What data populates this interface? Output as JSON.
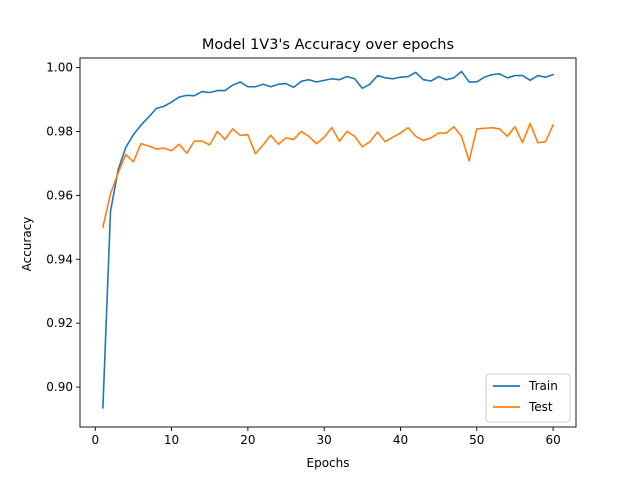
{
  "chart_data": {
    "type": "line",
    "title": "Model 1V3's Accuracy over epochs",
    "xlabel": "Epochs",
    "ylabel": "Accuracy",
    "xlim": [
      -2,
      63
    ],
    "ylim": [
      0.8875,
      1.003
    ],
    "xticks": [
      0,
      10,
      20,
      30,
      40,
      50,
      60
    ],
    "yticks": [
      0.9,
      0.92,
      0.94,
      0.96,
      0.98,
      1.0
    ],
    "ytick_labels": [
      "0.90",
      "0.92",
      "0.94",
      "0.96",
      "0.98",
      "1.00"
    ],
    "legend": {
      "position": "lower-right"
    },
    "grid": false,
    "x": [
      1,
      2,
      3,
      4,
      5,
      6,
      7,
      8,
      9,
      10,
      11,
      12,
      13,
      14,
      15,
      16,
      17,
      18,
      19,
      20,
      21,
      22,
      23,
      24,
      25,
      26,
      27,
      28,
      29,
      30,
      31,
      32,
      33,
      34,
      35,
      36,
      37,
      38,
      39,
      40,
      41,
      42,
      43,
      44,
      45,
      46,
      47,
      48,
      49,
      50,
      51,
      52,
      53,
      54,
      55,
      56,
      57,
      58,
      59,
      60
    ],
    "series": [
      {
        "name": "Train",
        "color": "#1f77b4",
        "values": [
          0.8935,
          0.955,
          0.968,
          0.975,
          0.979,
          0.982,
          0.9845,
          0.9872,
          0.9879,
          0.9892,
          0.9908,
          0.9913,
          0.9912,
          0.9925,
          0.9922,
          0.9928,
          0.9928,
          0.9945,
          0.9955,
          0.994,
          0.994,
          0.9948,
          0.994,
          0.9948,
          0.995,
          0.9938,
          0.9957,
          0.9962,
          0.9955,
          0.996,
          0.9965,
          0.9962,
          0.9972,
          0.9965,
          0.9935,
          0.9948,
          0.9975,
          0.9968,
          0.9965,
          0.997,
          0.9972,
          0.9985,
          0.9962,
          0.9958,
          0.9972,
          0.9962,
          0.9968,
          0.9988,
          0.9955,
          0.9955,
          0.997,
          0.9978,
          0.998,
          0.9968,
          0.9975,
          0.9975,
          0.996,
          0.9975,
          0.997,
          0.9978
        ]
      },
      {
        "name": "Test",
        "color": "#ff7f0e",
        "values": [
          0.95,
          0.9605,
          0.967,
          0.9728,
          0.9705,
          0.9762,
          0.9755,
          0.9745,
          0.9748,
          0.974,
          0.976,
          0.9732,
          0.977,
          0.977,
          0.9758,
          0.98,
          0.9775,
          0.9808,
          0.9788,
          0.979,
          0.973,
          0.9758,
          0.9788,
          0.976,
          0.978,
          0.9775,
          0.98,
          0.9785,
          0.9762,
          0.9782,
          0.9812,
          0.977,
          0.98,
          0.9785,
          0.9752,
          0.9768,
          0.9798,
          0.9768,
          0.9782,
          0.9795,
          0.9812,
          0.9785,
          0.9772,
          0.978,
          0.9795,
          0.9795,
          0.9815,
          0.9785,
          0.9708,
          0.9808,
          0.981,
          0.9812,
          0.9808,
          0.9785,
          0.9815,
          0.9765,
          0.9825,
          0.9765,
          0.9768,
          0.982
        ]
      }
    ]
  }
}
